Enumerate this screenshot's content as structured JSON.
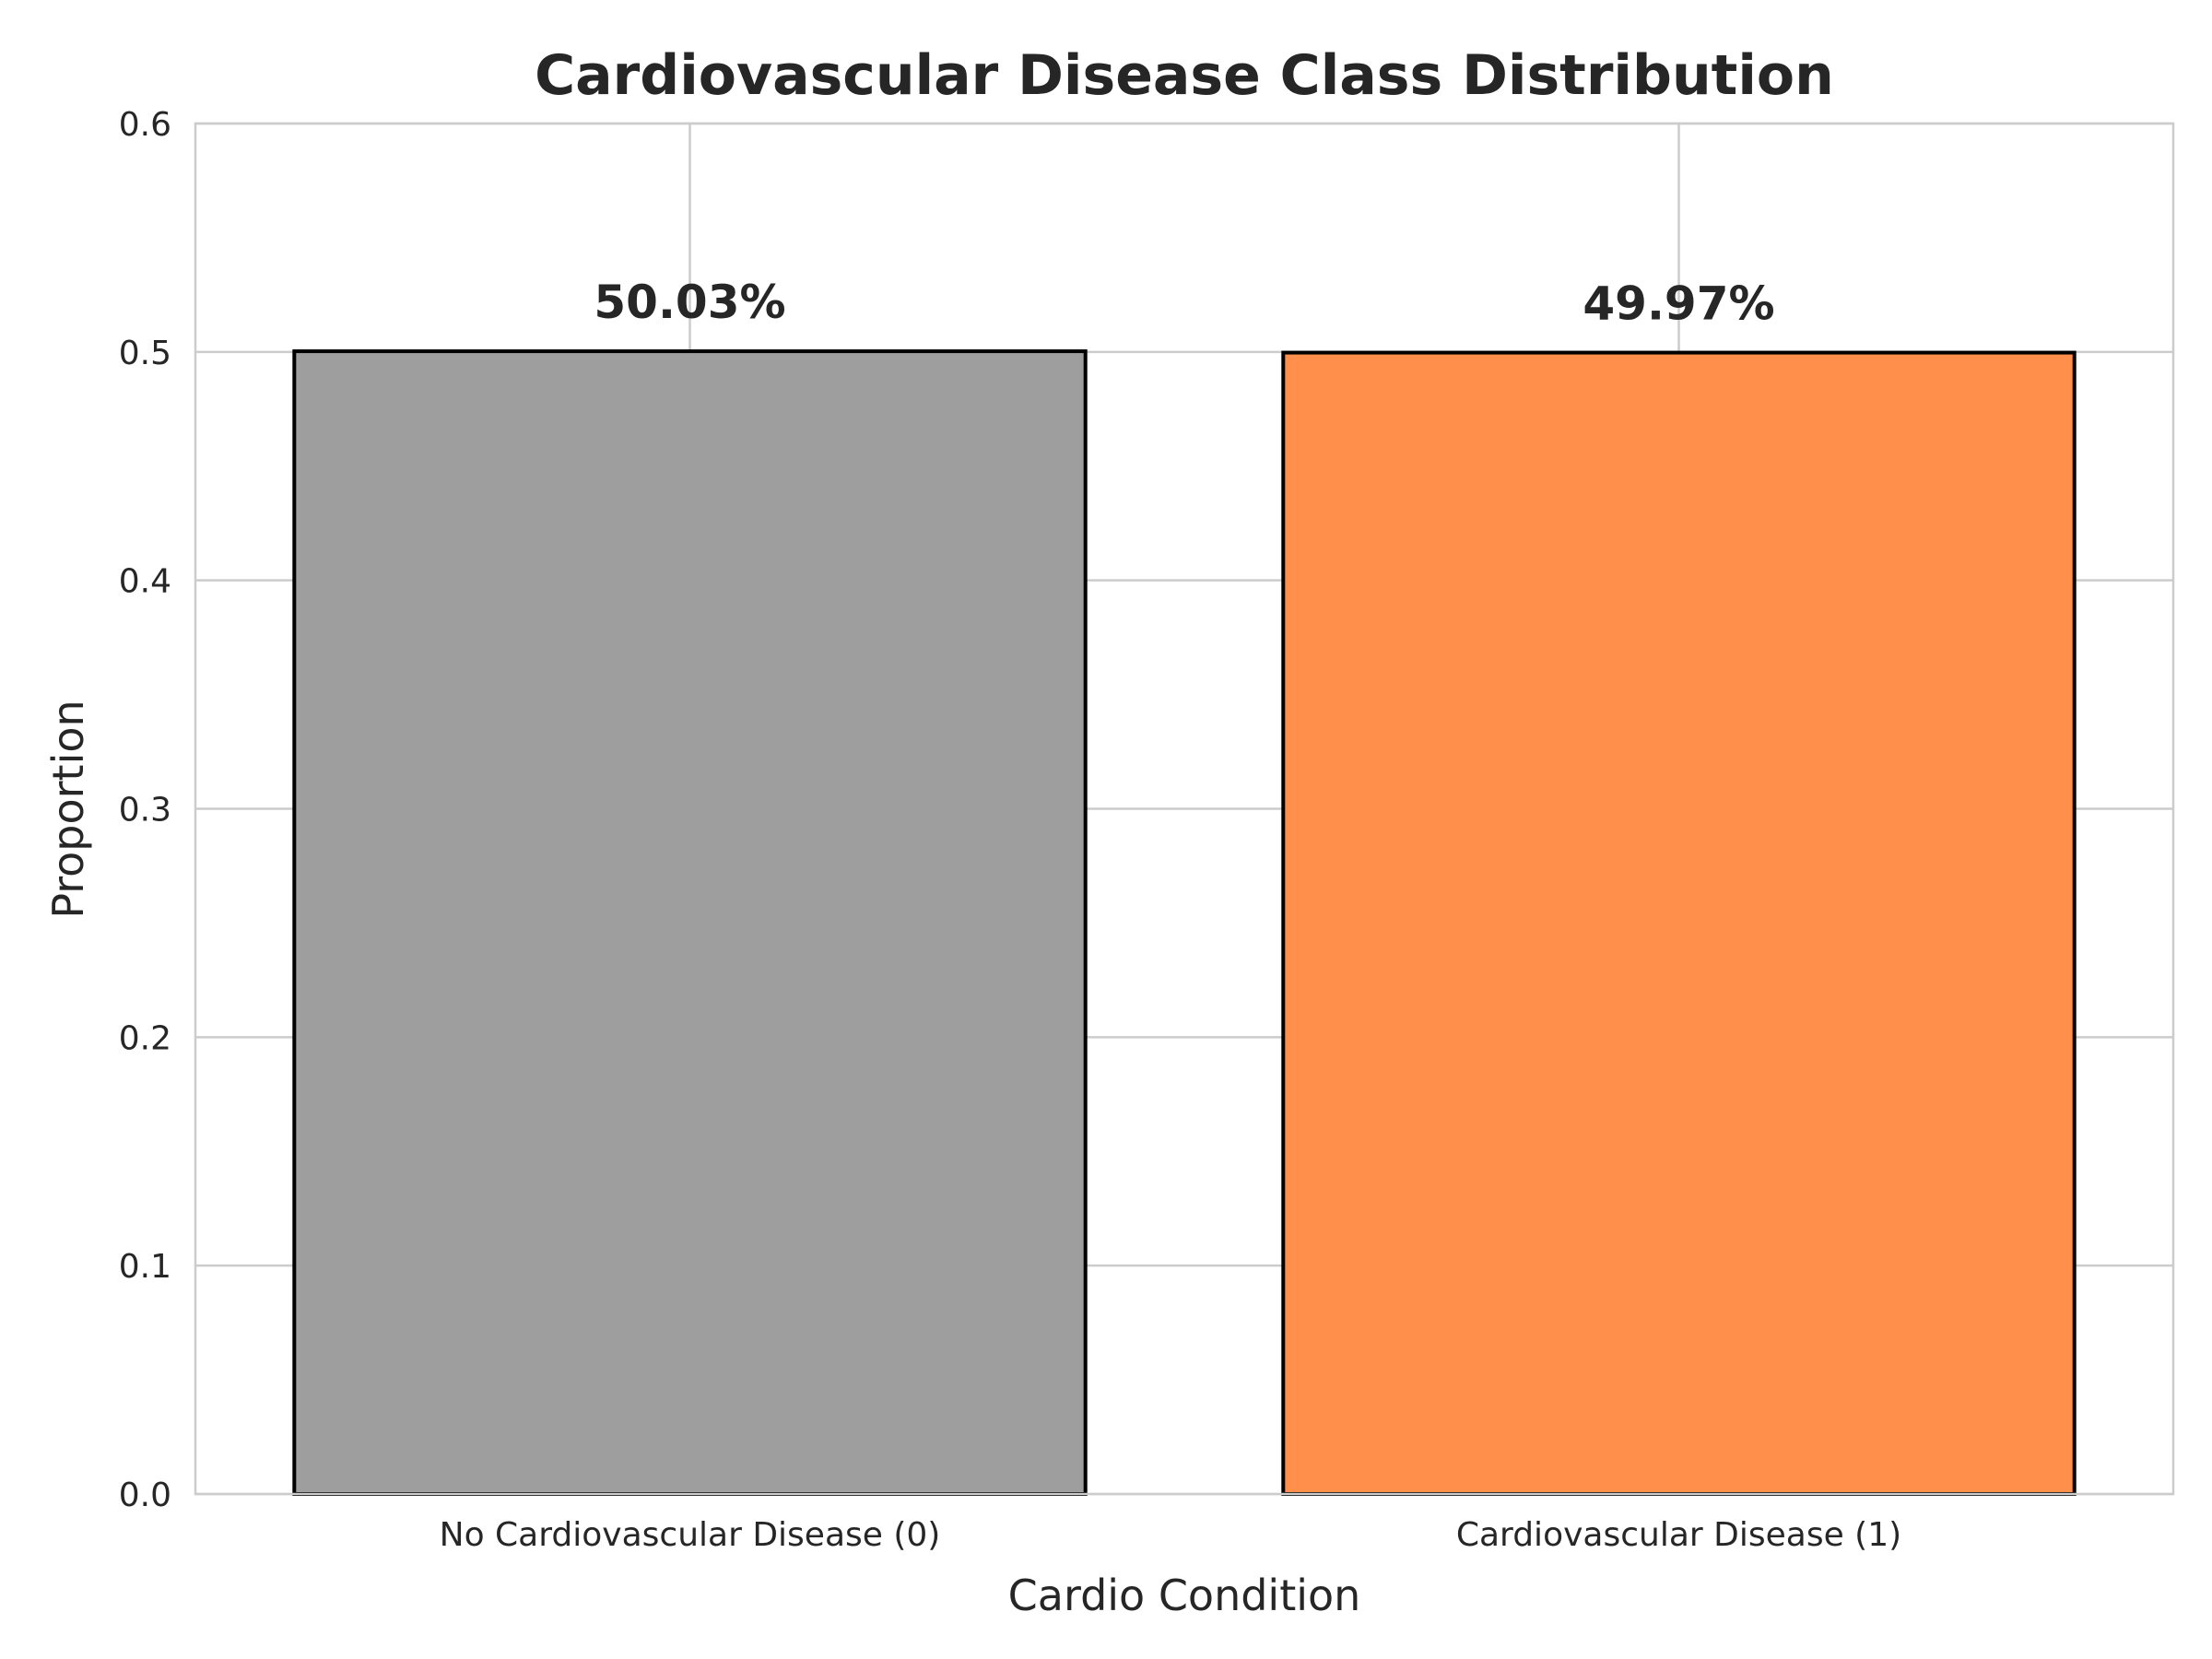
{
  "chart_data": {
    "type": "bar",
    "title": "Cardiovascular Disease Class Distribution",
    "xlabel": "Cardio Condition",
    "ylabel": "Proportion",
    "categories": [
      "No Cardiovascular Disease (0)",
      "Cardiovascular Disease (1)"
    ],
    "values": [
      0.5003,
      0.4997
    ],
    "data_labels": [
      "50.03%",
      "49.97%"
    ],
    "colors": [
      "#9e9e9e",
      "#ff8f4a"
    ],
    "ylim": [
      0,
      0.6
    ],
    "yticks": [
      0.0,
      0.1,
      0.2,
      0.3,
      0.4,
      0.5,
      0.6
    ],
    "ytick_labels": [
      "0.0",
      "0.1",
      "0.2",
      "0.3",
      "0.4",
      "0.5",
      "0.6"
    ],
    "grid": true
  }
}
